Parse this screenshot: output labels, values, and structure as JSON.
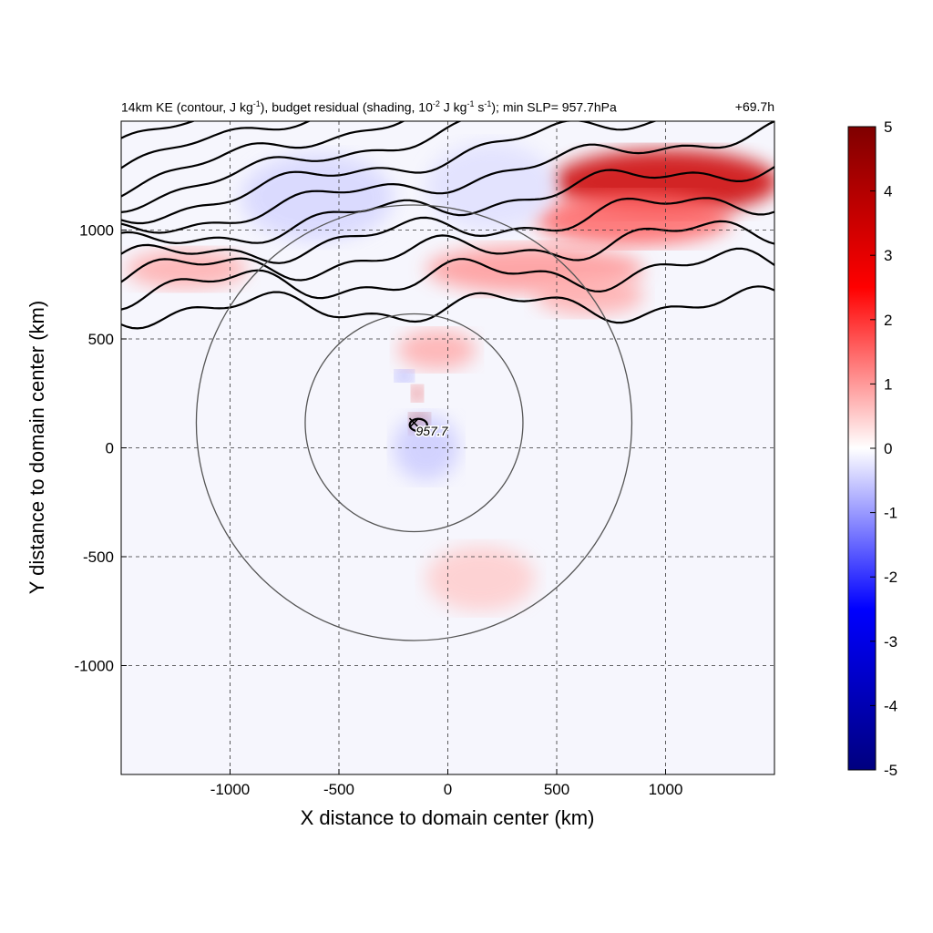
{
  "header": {
    "title_parts": {
      "a": "14km KE (contour, J kg",
      "a_sup": "-1",
      "b": "), budget residual (shading, 10",
      "b_sup": "-2",
      "c": " J kg",
      "c_sup": "-1",
      "d": " s",
      "d_sup": "-1",
      "e": "); min SLP= 957.7hPa"
    },
    "lead_time": "+69.7h"
  },
  "chart_data": {
    "type": "heatmap",
    "title": "14km KE (contour, J kg-1), budget residual (shading, 10-2 J kg-1 s-1); min SLP= 957.7hPa",
    "xlabel": "X distance to domain center (km)",
    "ylabel": "Y distance to domain center (km)",
    "xlim": [
      -1500,
      1500
    ],
    "ylim": [
      -1500,
      1500
    ],
    "x_ticks": [
      -1000,
      -500,
      0,
      500,
      1000
    ],
    "x_tick_labels": [
      "-1000",
      "-500",
      "0",
      "500",
      "1000"
    ],
    "y_ticks": [
      -1000,
      -500,
      0,
      500,
      1000
    ],
    "y_tick_labels": [
      "-1000",
      "-500",
      "0",
      "500",
      "1000"
    ],
    "grid": true,
    "colorbar": {
      "min": -5,
      "max": 5,
      "ticks": [
        5,
        4,
        3,
        2,
        1,
        0,
        -1,
        -2,
        -3,
        -4,
        -5
      ],
      "tick_labels": [
        "5",
        "4",
        "3",
        "2",
        "1",
        "0",
        "-1",
        "-2",
        "-3",
        "-4",
        "-5"
      ],
      "colors": [
        "#00007f",
        "#0000ff",
        "#ffffff",
        "#ff0000",
        "#7f0000"
      ]
    },
    "storm_center": {
      "x": -155,
      "y": 115,
      "label": "957.7"
    },
    "range_rings_km": [
      500,
      1000
    ],
    "positive_regions": [
      {
        "cx": 1000,
        "cy": 1220,
        "rx": 520,
        "ry": 150,
        "value": 3.5
      },
      {
        "cx": 850,
        "cy": 1050,
        "rx": 450,
        "ry": 120,
        "value": 1.5
      },
      {
        "cx": 400,
        "cy": 820,
        "rx": 500,
        "ry": 110,
        "value": 1.0
      },
      {
        "cx": -1200,
        "cy": 820,
        "rx": 280,
        "ry": 90,
        "value": 0.8
      },
      {
        "cx": -50,
        "cy": 450,
        "rx": 180,
        "ry": 90,
        "value": 0.8
      },
      {
        "cx": -130,
        "cy": 110,
        "rx": 45,
        "ry": 45,
        "value": 4.5
      },
      {
        "cx": -140,
        "cy": 250,
        "rx": 25,
        "ry": 35,
        "value": 3.0
      },
      {
        "cx": 150,
        "cy": -600,
        "rx": 250,
        "ry": 150,
        "value": 0.5
      },
      {
        "cx": 650,
        "cy": 700,
        "rx": 250,
        "ry": 90,
        "value": 0.8
      }
    ],
    "negative_regions": [
      {
        "cx": -200,
        "cy": 330,
        "rx": 40,
        "ry": 25,
        "value": -1.5
      },
      {
        "cx": -600,
        "cy": 1150,
        "rx": 350,
        "ry": 200,
        "value": -0.4
      },
      {
        "cx": 200,
        "cy": 1200,
        "rx": 300,
        "ry": 200,
        "value": -0.3
      },
      {
        "cx": -100,
        "cy": 0,
        "rx": 150,
        "ry": 150,
        "value": -0.5
      }
    ],
    "ke_contours": [
      {
        "y0": 630,
        "amp": 55,
        "tilt": 0.01
      },
      {
        "y0": 720,
        "amp": 60,
        "tilt": 0.04
      },
      {
        "y0": 790,
        "amp": 55,
        "tilt": 0.07
      },
      {
        "y0": 850,
        "amp": 50,
        "tilt": 0.1
      },
      {
        "y0": 920,
        "amp": 45,
        "tilt": 0.13
      },
      {
        "y0": 990,
        "amp": 40,
        "tilt": 0.16
      },
      {
        "y0": 1060,
        "amp": 40,
        "tilt": 0.19
      },
      {
        "y0": 1130,
        "amp": 35,
        "tilt": 0.22
      },
      {
        "y0": 1200,
        "amp": 35,
        "tilt": 0.25
      },
      {
        "y0": 1290,
        "amp": 30,
        "tilt": 0.28
      },
      {
        "y0": 1390,
        "amp": 30,
        "tilt": 0.3
      }
    ]
  }
}
